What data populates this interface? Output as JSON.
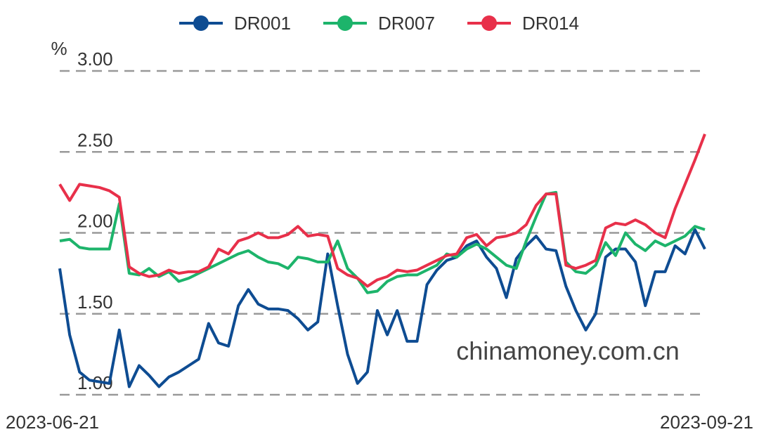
{
  "chart_data": {
    "type": "line",
    "ylabel": "%",
    "annotation": "chinamoney.com.cn",
    "categories": [
      "2023-06-21",
      null,
      null,
      null,
      null,
      null,
      null,
      null,
      null,
      null,
      null,
      null,
      null,
      null,
      null,
      null,
      null,
      null,
      null,
      null,
      null,
      null,
      null,
      null,
      null,
      null,
      null,
      null,
      null,
      null,
      null,
      null,
      null,
      null,
      null,
      null,
      null,
      null,
      null,
      null,
      null,
      null,
      null,
      null,
      null,
      null,
      null,
      null,
      null,
      null,
      null,
      null,
      null,
      null,
      null,
      null,
      null,
      null,
      null,
      null,
      null,
      null,
      null,
      null,
      null,
      "2023-09-21"
    ],
    "series": [
      {
        "name": "DR001",
        "color": "#0e4c92",
        "values": [
          1.78,
          1.37,
          1.14,
          1.09,
          1.08,
          1.07,
          1.4,
          1.05,
          1.18,
          1.12,
          1.05,
          1.11,
          1.14,
          1.18,
          1.22,
          1.44,
          1.32,
          1.3,
          1.55,
          1.65,
          1.56,
          1.53,
          1.53,
          1.52,
          1.47,
          1.4,
          1.45,
          1.87,
          1.55,
          1.25,
          1.07,
          1.14,
          1.52,
          1.37,
          1.52,
          1.33,
          1.33,
          1.68,
          1.77,
          1.83,
          1.85,
          1.92,
          1.95,
          1.85,
          1.78,
          1.6,
          1.84,
          1.92,
          1.98,
          1.9,
          1.89,
          1.67,
          1.52,
          1.4,
          1.5,
          1.85,
          1.9,
          1.9,
          1.82,
          1.55,
          1.76,
          1.76,
          1.92,
          1.87,
          2.02,
          1.9
        ]
      },
      {
        "name": "DR007",
        "color": "#1db46b",
        "values": [
          1.95,
          1.96,
          1.91,
          1.9,
          1.9,
          1.9,
          2.18,
          1.75,
          1.74,
          1.78,
          1.73,
          1.76,
          1.7,
          1.72,
          1.75,
          1.78,
          1.81,
          1.84,
          1.87,
          1.89,
          1.85,
          1.82,
          1.81,
          1.78,
          1.85,
          1.84,
          1.82,
          1.82,
          1.95,
          1.78,
          1.72,
          1.63,
          1.64,
          1.7,
          1.73,
          1.74,
          1.74,
          1.77,
          1.8,
          1.87,
          1.85,
          1.9,
          1.93,
          1.9,
          1.85,
          1.8,
          1.78,
          1.95,
          2.1,
          2.24,
          2.25,
          1.82,
          1.76,
          1.75,
          1.8,
          1.94,
          1.86,
          2.0,
          1.93,
          1.89,
          1.95,
          1.92,
          1.95,
          1.98,
          2.04,
          2.02
        ]
      },
      {
        "name": "DR014",
        "color": "#e8304a",
        "values": [
          2.3,
          2.2,
          2.3,
          2.29,
          2.28,
          2.26,
          2.22,
          1.79,
          1.75,
          1.73,
          1.74,
          1.77,
          1.75,
          1.76,
          1.76,
          1.79,
          1.9,
          1.87,
          1.95,
          1.97,
          2.0,
          1.97,
          1.97,
          1.99,
          2.04,
          1.98,
          1.99,
          1.98,
          1.78,
          1.74,
          1.72,
          1.67,
          1.71,
          1.73,
          1.77,
          1.76,
          1.77,
          1.8,
          1.83,
          1.86,
          1.87,
          1.97,
          1.99,
          1.92,
          1.97,
          1.98,
          2.0,
          2.05,
          2.17,
          2.24,
          2.24,
          1.8,
          1.78,
          1.8,
          1.83,
          2.03,
          2.06,
          2.05,
          2.08,
          2.05,
          2.0,
          1.97,
          2.15,
          2.3,
          2.45,
          2.61
        ]
      }
    ],
    "ylim": [
      1,
      3
    ],
    "yticks": [
      {
        "value": 1,
        "label": "1.00"
      },
      {
        "value": 1.5,
        "label": "1.50"
      },
      {
        "value": 2,
        "label": "2.00"
      },
      {
        "value": 2.5,
        "label": "2.50"
      },
      {
        "value": 3,
        "label": "3.00"
      }
    ],
    "grid": true
  }
}
